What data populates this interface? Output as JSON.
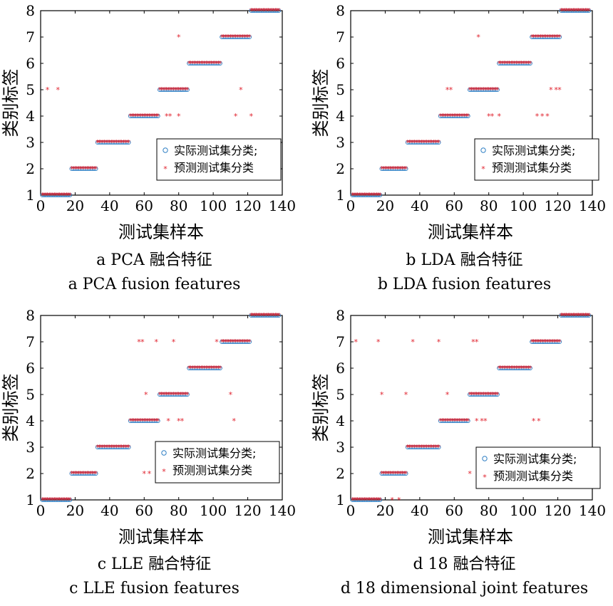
{
  "colors": {
    "actual": "#2f7fc4",
    "predicted": "#e01f2b",
    "axis": "#000000"
  },
  "chart_data": [
    {
      "type": "scatter",
      "xlabel": "测试集样本",
      "ylabel": "类别标签",
      "caption_cn": "a  PCA 融合特征",
      "caption_en": "a  PCA fusion features",
      "xlim": [
        0,
        140
      ],
      "ylim": [
        1,
        8
      ],
      "xticks": [
        "0",
        "20",
        "40",
        "60",
        "80",
        "100",
        "120",
        "140"
      ],
      "yticks": [
        "1",
        "2",
        "3",
        "4",
        "5",
        "6",
        "7",
        "8"
      ],
      "legend": {
        "position": "right-middle",
        "entries": [
          "实际测试集分类;",
          "预测测试集分类"
        ]
      },
      "series": [
        {
          "name": "实际测试集分类;",
          "marker": "circle",
          "segments": [
            [
              1,
              17,
              1
            ],
            [
              18,
              32,
              2
            ],
            [
              33,
              51,
              3
            ],
            [
              52,
              68,
              4
            ],
            [
              69,
              85,
              5
            ],
            [
              86,
              104,
              6
            ],
            [
              105,
              121,
              7
            ],
            [
              122,
              138,
              8
            ]
          ]
        },
        {
          "name": "预测测试集分类",
          "marker": "star",
          "segments": [
            [
              1,
              17,
              1
            ],
            [
              18,
              32,
              2
            ],
            [
              33,
              51,
              3
            ],
            [
              52,
              68,
              4
            ],
            [
              69,
              85,
              5
            ],
            [
              86,
              104,
              6
            ],
            [
              105,
              121,
              7
            ],
            [
              122,
              138,
              8
            ]
          ],
          "points": [
            [
              4,
              5
            ],
            [
              10,
              5
            ],
            [
              33,
              3
            ],
            [
              73,
              4
            ],
            [
              75,
              4
            ],
            [
              80,
              4
            ],
            [
              80,
              7
            ],
            [
              113,
              4
            ],
            [
              116,
              5
            ],
            [
              122,
              4
            ]
          ]
        }
      ]
    },
    {
      "type": "scatter",
      "xlabel": "测试集样本",
      "ylabel": "类别标签",
      "caption_cn": "b LDA 融合特征",
      "caption_en": "b  LDA fusion features",
      "xlim": [
        0,
        140
      ],
      "ylim": [
        1,
        8
      ],
      "xticks": [
        "0",
        "20",
        "40",
        "60",
        "80",
        "100",
        "120",
        "140"
      ],
      "yticks": [
        "1",
        "2",
        "3",
        "4",
        "5",
        "6",
        "7",
        "8"
      ],
      "legend": {
        "position": "right-middle",
        "entries": [
          "实际测试集分类;",
          "预测测试集分类"
        ]
      },
      "series": [
        {
          "name": "实际测试集分类;",
          "marker": "circle",
          "segments": [
            [
              1,
              17,
              1
            ],
            [
              18,
              32,
              2
            ],
            [
              33,
              51,
              3
            ],
            [
              52,
              68,
              4
            ],
            [
              69,
              85,
              5
            ],
            [
              86,
              104,
              6
            ],
            [
              105,
              121,
              7
            ],
            [
              122,
              138,
              8
            ]
          ]
        },
        {
          "name": "预测测试集分类",
          "marker": "star",
          "segments": [
            [
              1,
              17,
              1
            ],
            [
              18,
              32,
              2
            ],
            [
              33,
              51,
              3
            ],
            [
              52,
              68,
              4
            ],
            [
              69,
              85,
              5
            ],
            [
              86,
              104,
              6
            ],
            [
              105,
              121,
              7
            ],
            [
              122,
              138,
              8
            ]
          ],
          "points": [
            [
              56,
              5
            ],
            [
              58,
              5
            ],
            [
              74,
              7
            ],
            [
              80,
              4
            ],
            [
              82,
              4
            ],
            [
              86,
              4
            ],
            [
              108,
              4
            ],
            [
              111,
              4
            ],
            [
              114,
              4
            ],
            [
              116,
              5
            ],
            [
              119,
              5
            ],
            [
              121,
              5
            ]
          ]
        }
      ]
    },
    {
      "type": "scatter",
      "xlabel": "测试集样本",
      "ylabel": "类别标签",
      "caption_cn": "c  LLE 融合特征",
      "caption_en": "c  LLE fusion features",
      "xlim": [
        0,
        140
      ],
      "ylim": [
        1,
        8
      ],
      "xticks": [
        "0",
        "20",
        "40",
        "60",
        "80",
        "100",
        "120",
        "140"
      ],
      "yticks": [
        "1",
        "2",
        "3",
        "4",
        "5",
        "6",
        "7",
        "8"
      ],
      "legend": {
        "position": "right-bottom",
        "entries": [
          "实际测试集分类;",
          "预测测试集分类"
        ]
      },
      "series": [
        {
          "name": "实际测试集分类;",
          "marker": "circle",
          "segments": [
            [
              1,
              17,
              1
            ],
            [
              18,
              32,
              2
            ],
            [
              33,
              51,
              3
            ],
            [
              52,
              68,
              4
            ],
            [
              69,
              85,
              5
            ],
            [
              86,
              104,
              6
            ],
            [
              105,
              121,
              7
            ],
            [
              122,
              138,
              8
            ]
          ]
        },
        {
          "name": "预测测试集分类",
          "marker": "star",
          "segments": [
            [
              1,
              17,
              1
            ],
            [
              18,
              32,
              2
            ],
            [
              33,
              51,
              3
            ],
            [
              52,
              68,
              4
            ],
            [
              69,
              85,
              5
            ],
            [
              86,
              104,
              6
            ],
            [
              105,
              121,
              7
            ],
            [
              122,
              138,
              8
            ]
          ],
          "points": [
            [
              57,
              7
            ],
            [
              59,
              7
            ],
            [
              67,
              7
            ],
            [
              77,
              7
            ],
            [
              102,
              7
            ],
            [
              61,
              5
            ],
            [
              110,
              5
            ],
            [
              60,
              2
            ],
            [
              63,
              2
            ],
            [
              74,
              4
            ],
            [
              80,
              4
            ],
            [
              82,
              4
            ],
            [
              112,
              4
            ]
          ]
        }
      ]
    },
    {
      "type": "scatter",
      "xlabel": "测试集样本",
      "ylabel": "类别标签",
      "caption_cn": "d 18 融合特征",
      "caption_en": "d  18 dimensional joint features",
      "xlim": [
        0,
        140
      ],
      "ylim": [
        1,
        8
      ],
      "xticks": [
        "0",
        "20",
        "40",
        "60",
        "80",
        "100",
        "120",
        "140"
      ],
      "yticks": [
        "1",
        "2",
        "3",
        "4",
        "5",
        "6",
        "7",
        "8"
      ],
      "legend": {
        "position": "right-bottom",
        "entries": [
          "实际测试集分类;",
          "预测测试集分类"
        ]
      },
      "series": [
        {
          "name": "实际测试集分类;",
          "marker": "circle",
          "segments": [
            [
              1,
              17,
              1
            ],
            [
              18,
              32,
              2
            ],
            [
              33,
              51,
              3
            ],
            [
              52,
              68,
              4
            ],
            [
              69,
              85,
              5
            ],
            [
              86,
              104,
              6
            ],
            [
              105,
              121,
              7
            ],
            [
              122,
              138,
              8
            ]
          ]
        },
        {
          "name": "预测测试集分类",
          "marker": "star",
          "segments": [
            [
              1,
              17,
              1
            ],
            [
              18,
              32,
              2
            ],
            [
              33,
              51,
              3
            ],
            [
              52,
              68,
              4
            ],
            [
              69,
              85,
              5
            ],
            [
              86,
              104,
              6
            ],
            [
              105,
              121,
              7
            ],
            [
              122,
              138,
              8
            ]
          ],
          "points": [
            [
              3,
              7
            ],
            [
              16,
              7
            ],
            [
              36,
              7
            ],
            [
              51,
              7
            ],
            [
              71,
              7
            ],
            [
              73,
              7
            ],
            [
              18,
              5
            ],
            [
              32,
              5
            ],
            [
              56,
              5
            ],
            [
              69,
              2
            ],
            [
              24,
              1
            ],
            [
              28,
              1
            ],
            [
              33,
              3
            ],
            [
              73,
              4
            ],
            [
              76,
              4
            ],
            [
              78,
              4
            ],
            [
              106,
              4
            ],
            [
              109,
              4
            ]
          ]
        }
      ]
    }
  ]
}
